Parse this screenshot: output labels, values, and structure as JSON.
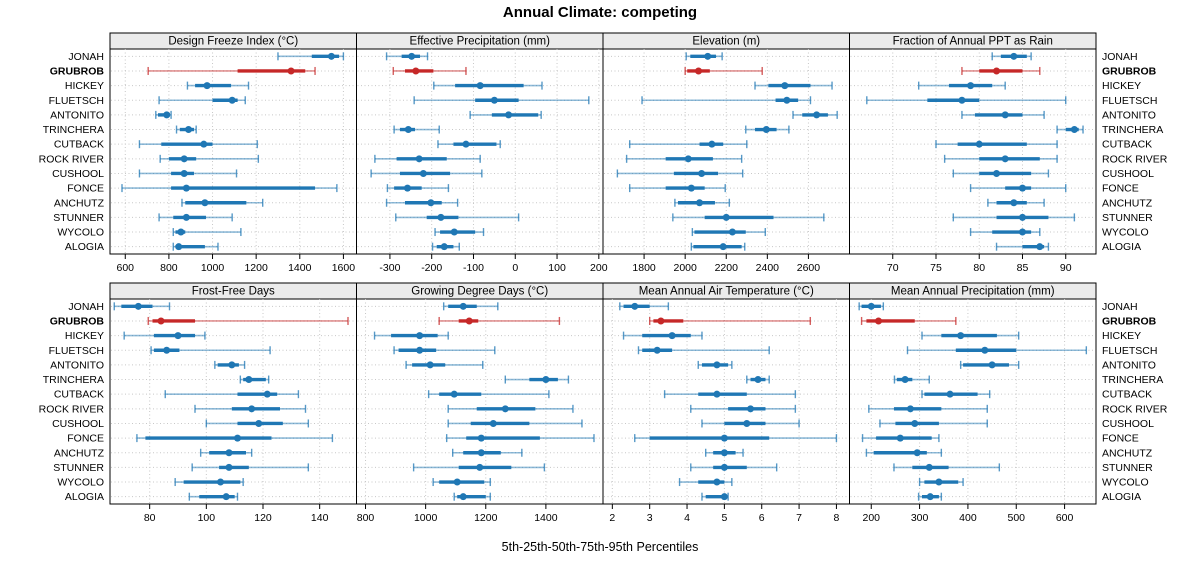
{
  "title": "Annual Climate: competing",
  "footer": "5th-25th-50th-75th-95th Percentiles",
  "colors": {
    "blue": "#1f77b4",
    "red": "#c62828",
    "panel_header_bg": "#ebebeb",
    "grid": "#c8c8c8",
    "border": "#000000"
  },
  "chart_data": {
    "type": "dotplot-percentiles",
    "title": "Annual Climate: competing",
    "xlabel": "5th-25th-50th-75th-95th Percentiles",
    "percentiles": [
      5,
      25,
      50,
      75,
      95
    ],
    "highlight_site": "GRUBROB",
    "sites": [
      "JONAH",
      "GRUBROB",
      "HICKEY",
      "FLUETSCH",
      "ANTONITO",
      "TRINCHERA",
      "CUTBACK",
      "ROCK RIVER",
      "CUSHOOL",
      "FONCE",
      "ANCHUTZ",
      "STUNNER",
      "WYCOLO",
      "ALOGIA"
    ],
    "panels": [
      {
        "title": "Design Freeze Index (°C)",
        "row": 0,
        "col": 0,
        "xlim": [
          530,
          1660
        ],
        "ticks": [
          600,
          800,
          1000,
          1200,
          1400,
          1600
        ],
        "values": [
          [
            1300,
            1455,
            1545,
            1580,
            1600
          ],
          [
            705,
            1115,
            1360,
            1425,
            1470
          ],
          [
            885,
            920,
            975,
            1085,
            1165
          ],
          [
            755,
            1000,
            1090,
            1115,
            1150
          ],
          [
            740,
            750,
            790,
            805,
            810
          ],
          [
            835,
            850,
            890,
            915,
            925
          ],
          [
            665,
            765,
            960,
            1000,
            1205
          ],
          [
            760,
            800,
            870,
            925,
            1210
          ],
          [
            665,
            810,
            870,
            915,
            1110
          ],
          [
            585,
            810,
            880,
            1470,
            1570
          ],
          [
            860,
            875,
            965,
            1155,
            1230
          ],
          [
            755,
            820,
            880,
            970,
            1090
          ],
          [
            820,
            830,
            855,
            875,
            1130
          ],
          [
            820,
            830,
            845,
            965,
            1025
          ]
        ]
      },
      {
        "title": "Effective Precipitation (mm)",
        "row": 0,
        "col": 1,
        "xlim": [
          -380,
          210
        ],
        "ticks": [
          -300,
          -200,
          -100,
          0,
          100,
          200
        ],
        "values": [
          [
            -308,
            -272,
            -248,
            -228,
            -210
          ],
          [
            -292,
            -264,
            -238,
            -196,
            -118
          ],
          [
            -195,
            -144,
            -84,
            20,
            64
          ],
          [
            -242,
            -96,
            -50,
            8,
            176
          ],
          [
            -108,
            -56,
            -16,
            55,
            62
          ],
          [
            -290,
            -276,
            -256,
            -240,
            -182
          ],
          [
            -185,
            -148,
            -118,
            -45,
            -36
          ],
          [
            -336,
            -284,
            -230,
            -164,
            -84
          ],
          [
            -345,
            -276,
            -220,
            -156,
            -80
          ],
          [
            -306,
            -290,
            -258,
            -224,
            -160
          ],
          [
            -308,
            -264,
            -202,
            -176,
            -138
          ],
          [
            -286,
            -212,
            -178,
            -136,
            8
          ],
          [
            -192,
            -180,
            -146,
            -96,
            -76
          ],
          [
            -198,
            -188,
            -170,
            -148,
            -134
          ]
        ]
      },
      {
        "title": "Elevation (m)",
        "row": 0,
        "col": 2,
        "xlim": [
          1600,
          2800
        ],
        "ticks": [
          1800,
          2000,
          2200,
          2400,
          2600
        ],
        "values": [
          [
            2005,
            2025,
            2110,
            2150,
            2180
          ],
          [
            2000,
            2010,
            2065,
            2120,
            2375
          ],
          [
            2340,
            2405,
            2485,
            2610,
            2715
          ],
          [
            1790,
            2440,
            2495,
            2550,
            2610
          ],
          [
            2525,
            2570,
            2640,
            2695,
            2740
          ],
          [
            2295,
            2340,
            2395,
            2445,
            2505
          ],
          [
            1730,
            2070,
            2130,
            2185,
            2300
          ],
          [
            1715,
            1905,
            2015,
            2135,
            2275
          ],
          [
            1670,
            1945,
            2080,
            2160,
            2280
          ],
          [
            1730,
            1905,
            2030,
            2095,
            2195
          ],
          [
            1950,
            1965,
            2070,
            2145,
            2215
          ],
          [
            1940,
            2095,
            2200,
            2430,
            2675
          ],
          [
            2035,
            2045,
            2230,
            2295,
            2390
          ],
          [
            2030,
            2040,
            2185,
            2275,
            2290
          ]
        ]
      },
      {
        "title": "Fraction of Annual PPT as Rain",
        "row": 0,
        "col": 3,
        "xlim": [
          65,
          93.5
        ],
        "ticks": [
          70,
          75,
          80,
          85,
          90
        ],
        "values": [
          [
            81.5,
            82.5,
            84,
            85.5,
            86
          ],
          [
            78,
            80,
            82,
            85,
            87
          ],
          [
            73,
            76.5,
            79,
            81.5,
            83
          ],
          [
            67,
            74,
            78,
            80,
            90
          ],
          [
            78,
            79.5,
            83,
            85,
            87.5
          ],
          [
            89,
            90,
            91,
            91.5,
            92
          ],
          [
            75,
            77.5,
            80,
            85.5,
            89
          ],
          [
            76,
            80,
            83,
            87,
            89
          ],
          [
            77,
            80,
            82,
            86,
            88
          ],
          [
            79,
            83,
            85,
            86,
            90
          ],
          [
            81,
            82,
            84,
            85.5,
            87.5
          ],
          [
            77,
            82,
            85,
            88,
            91
          ],
          [
            79,
            81.5,
            85,
            86,
            87
          ],
          [
            82,
            85,
            87,
            87.5,
            88
          ]
        ]
      },
      {
        "title": "Frost-Free Days",
        "row": 1,
        "col": 0,
        "xlim": [
          66,
          153
        ],
        "ticks": [
          80,
          100,
          120,
          140
        ],
        "values": [
          [
            67.5,
            70,
            76,
            81,
            87
          ],
          [
            79.5,
            81,
            84,
            96,
            150
          ],
          [
            71,
            81.5,
            90,
            96,
            99.5
          ],
          [
            80.5,
            81.5,
            86,
            90.5,
            122.5
          ],
          [
            103,
            104,
            109,
            111.5,
            113.5
          ],
          [
            112,
            113,
            115,
            121,
            122
          ],
          [
            85.5,
            111,
            121.5,
            125,
            132.5
          ],
          [
            96,
            109,
            116,
            126,
            135
          ],
          [
            100,
            111,
            118.5,
            127,
            136
          ],
          [
            75.5,
            78.5,
            111,
            123,
            144.5
          ],
          [
            98,
            101,
            108,
            114,
            116
          ],
          [
            95,
            104.5,
            108,
            115,
            136
          ],
          [
            89,
            92,
            105,
            112,
            113
          ],
          [
            94,
            97.5,
            107,
            110,
            111
          ]
        ]
      },
      {
        "title": "Growing Degree Days (°C)",
        "row": 1,
        "col": 1,
        "xlim": [
          770,
          1590
        ],
        "ticks": [
          800,
          1000,
          1200,
          1400
        ],
        "values": [
          [
            1060,
            1075,
            1125,
            1170,
            1240
          ],
          [
            1045,
            1110,
            1145,
            1175,
            1445
          ],
          [
            830,
            885,
            980,
            1040,
            1075
          ],
          [
            895,
            910,
            980,
            1035,
            1230
          ],
          [
            935,
            955,
            1015,
            1065,
            1190
          ],
          [
            1265,
            1345,
            1400,
            1440,
            1475
          ],
          [
            1010,
            1045,
            1095,
            1185,
            1410
          ],
          [
            1075,
            1170,
            1265,
            1365,
            1490
          ],
          [
            1075,
            1150,
            1225,
            1345,
            1520
          ],
          [
            1070,
            1135,
            1185,
            1380,
            1560
          ],
          [
            1090,
            1125,
            1185,
            1250,
            1320
          ],
          [
            960,
            1110,
            1180,
            1285,
            1395
          ],
          [
            1025,
            1045,
            1105,
            1195,
            1215
          ],
          [
            1095,
            1105,
            1125,
            1200,
            1215
          ]
        ]
      },
      {
        "title": "Mean Annual Air Temperature (°C)",
        "row": 1,
        "col": 2,
        "xlim": [
          1.75,
          8.35
        ],
        "ticks": [
          2,
          3,
          4,
          5,
          6,
          7,
          8
        ],
        "values": [
          [
            2.2,
            2.3,
            2.6,
            3.0,
            3.5
          ],
          [
            3.0,
            3.1,
            3.3,
            3.9,
            7.3
          ],
          [
            2.3,
            2.8,
            3.6,
            4.1,
            4.4
          ],
          [
            2.7,
            2.8,
            3.2,
            3.6,
            6.2
          ],
          [
            4.3,
            4.4,
            4.8,
            5.1,
            5.2
          ],
          [
            5.6,
            5.7,
            5.9,
            6.1,
            6.2
          ],
          [
            3.4,
            4.3,
            4.8,
            5.6,
            6.9
          ],
          [
            4.1,
            5.1,
            5.7,
            6.1,
            6.9
          ],
          [
            4.4,
            5.0,
            5.6,
            6.1,
            7.0
          ],
          [
            2.6,
            3.0,
            5.0,
            6.2,
            8.0
          ],
          [
            4.5,
            4.7,
            5.0,
            5.3,
            5.5
          ],
          [
            4.1,
            4.7,
            5.0,
            5.6,
            6.4
          ],
          [
            3.8,
            4.3,
            4.8,
            5.0,
            5.2
          ],
          [
            4.4,
            4.5,
            5.0,
            5.05,
            5.1
          ]
        ]
      },
      {
        "title": "Mean Annual Precipitation (mm)",
        "row": 1,
        "col": 3,
        "xlim": [
          155,
          665
        ],
        "ticks": [
          200,
          300,
          400,
          500,
          600
        ],
        "values": [
          [
            175,
            180,
            200,
            220,
            225
          ],
          [
            180,
            190,
            215,
            290,
            375
          ],
          [
            305,
            345,
            385,
            460,
            505
          ],
          [
            275,
            375,
            435,
            500,
            645
          ],
          [
            385,
            390,
            450,
            485,
            505
          ],
          [
            248,
            253,
            270,
            285,
            320
          ],
          [
            305,
            310,
            363,
            420,
            445
          ],
          [
            195,
            247,
            281,
            345,
            440
          ],
          [
            218,
            250,
            290,
            340,
            440
          ],
          [
            182,
            210,
            260,
            325,
            340
          ],
          [
            190,
            205,
            295,
            315,
            345
          ],
          [
            247,
            285,
            320,
            360,
            465
          ],
          [
            300,
            310,
            340,
            380,
            390
          ],
          [
            298,
            305,
            322,
            340,
            345
          ]
        ]
      }
    ]
  }
}
